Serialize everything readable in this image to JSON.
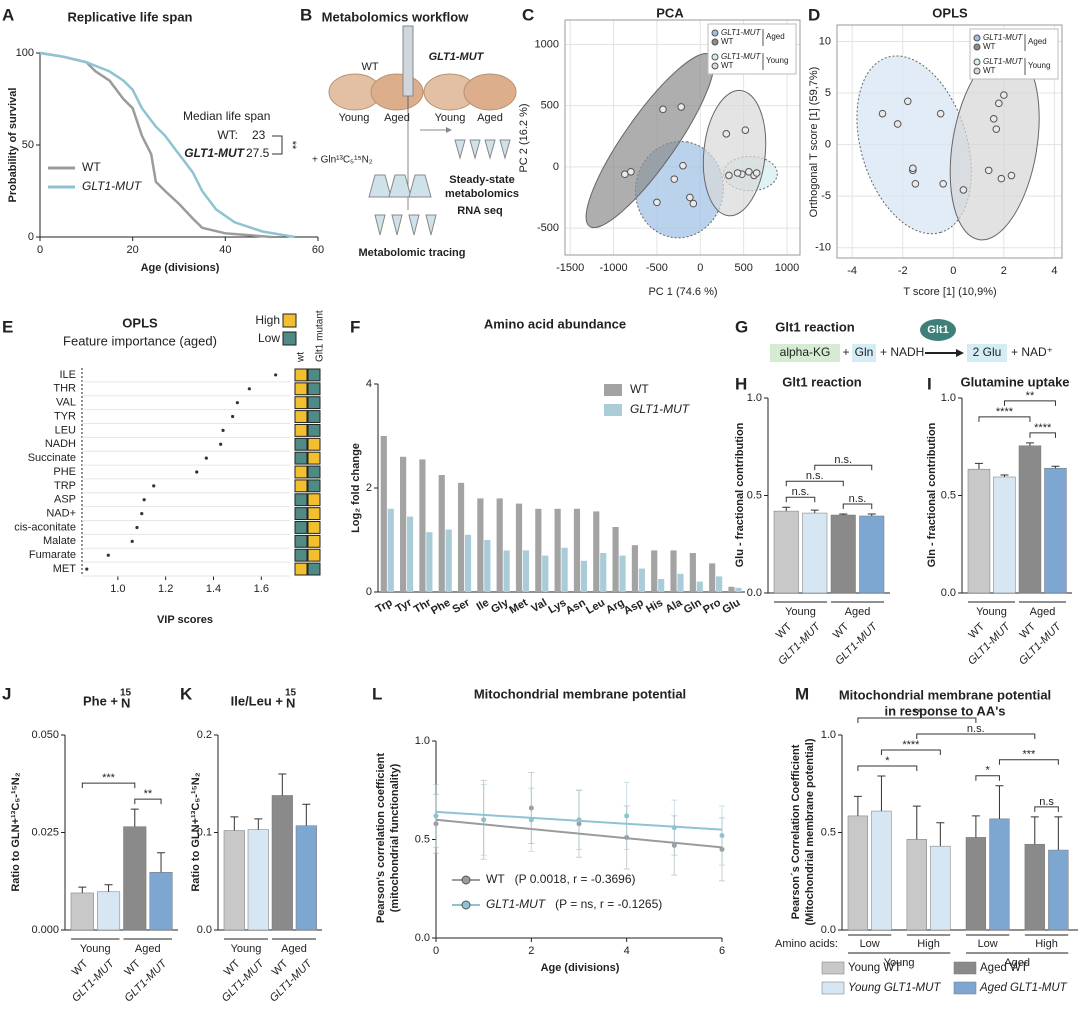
{
  "chart_data": [
    {
      "letter": "A",
      "type": "line",
      "title": "Replicative life span",
      "x_label": "Age (divisions)",
      "y_label": "Probability of survival",
      "xlim": [
        0,
        60
      ],
      "xticks": [
        0,
        20,
        40,
        60
      ],
      "ylim": [
        0,
        100
      ],
      "yticks": [
        0,
        50,
        100
      ],
      "series": [
        {
          "name": "WT",
          "color": "#9b9b9b",
          "x": [
            0,
            5,
            10,
            12,
            15,
            18,
            20,
            22,
            24,
            25,
            27,
            30,
            33,
            35,
            40,
            45,
            50
          ],
          "values": [
            100,
            98,
            95,
            90,
            85,
            75,
            70,
            55,
            45,
            30,
            25,
            18,
            10,
            5,
            2,
            1,
            0
          ]
        },
        {
          "name": "GLT1-MUT",
          "color": "#8fc3d2",
          "x": [
            0,
            5,
            10,
            12,
            15,
            18,
            20,
            22,
            25,
            27,
            30,
            33,
            35,
            38,
            42,
            48,
            55
          ],
          "values": [
            100,
            98,
            95,
            93,
            90,
            85,
            80,
            70,
            60,
            55,
            45,
            35,
            25,
            15,
            8,
            3,
            0
          ]
        }
      ],
      "median_title": "Median life span",
      "median_wt_label": "WT:",
      "median_wt": 23,
      "median_mut_label": "GLT1-MUT",
      "median_mut": 27.5,
      "significance": "**"
    },
    {
      "letter": "B",
      "type": "diagram",
      "title": "Metabolomics workflow",
      "strain_wt": "WT",
      "strain_mut": "GLT1-MUT",
      "ages": [
        "Young",
        "Aged",
        "Young",
        "Aged"
      ],
      "tracer": "+ Gln¹³C₅¹⁵N₂",
      "steady_state": [
        "Steady-state",
        "metabolomics"
      ],
      "rna": "RNA seq",
      "tracing": "Metabolomic tracing"
    },
    {
      "letter": "C",
      "type": "scatter",
      "title": "PCA",
      "x_label": "PC 1  (74.6 %)",
      "y_label": "PC 2 (16.2 %)",
      "xlim": [
        -1560,
        1150
      ],
      "xticks": [
        -1500,
        -1000,
        -500,
        0,
        500,
        1000
      ],
      "ylim": [
        -720,
        1200
      ],
      "yticks": [
        -500,
        0,
        500,
        1000
      ],
      "grid": true,
      "legend": [
        {
          "group": "Aged",
          "names": [
            "GLT1-MUT",
            "WT"
          ]
        },
        {
          "group": "Young",
          "names": [
            "GLT1-MUT",
            "WT"
          ]
        }
      ],
      "series": [
        {
          "color": "#9cbfe3",
          "x": [
            -500,
            -300,
            -200,
            -120,
            -80
          ],
          "values": [
            -290,
            -100,
            10,
            -250,
            -300
          ]
        },
        {
          "color": "#8c8c8c",
          "x": [
            -870,
            -800,
            -430,
            -220
          ],
          "values": [
            -60,
            -40,
            470,
            490
          ]
        },
        {
          "color": "#d3ecef",
          "x": [
            480,
            560,
            620,
            650
          ],
          "values": [
            -60,
            -40,
            -70,
            -50
          ]
        },
        {
          "color": "#d9d9d9",
          "x": [
            300,
            520,
            330,
            430
          ],
          "values": [
            270,
            300,
            -70,
            -50
          ]
        }
      ]
    },
    {
      "letter": "D",
      "type": "scatter",
      "title": "OPLS",
      "x_label": "T score [1] (10,9%)",
      "y_label": "Orthogonal T score [1] (59,7%)",
      "xlim": [
        -4.6,
        4.3
      ],
      "xticks": [
        -4,
        -2,
        0,
        2,
        4
      ],
      "ylim": [
        -11,
        11.6
      ],
      "yticks": [
        -10,
        -5,
        0,
        5,
        10
      ],
      "grid": true,
      "legend": [
        {
          "group": "Aged",
          "names": [
            "GLT1-MUT",
            "WT"
          ]
        },
        {
          "group": "Young",
          "names": [
            "GLT1-MUT",
            "WT"
          ]
        }
      ],
      "series": [
        {
          "color": "#d6e4f3",
          "x": [
            -2.8,
            -2.2,
            -1.8,
            -1.6,
            -1.5,
            -0.5,
            -0.4,
            -1.6
          ],
          "values": [
            3,
            2,
            4.2,
            -2.5,
            -3.8,
            3,
            -3.8,
            -2.3
          ]
        },
        {
          "color": "#d6d6d6",
          "x": [
            0.4,
            1.4,
            1.6,
            1.7,
            1.8,
            1.9,
            2.0,
            2.3
          ],
          "values": [
            -4.4,
            -2.5,
            2.5,
            1.5,
            4,
            -3.3,
            4.8,
            -3
          ]
        }
      ]
    },
    {
      "letter": "E",
      "type": "dot",
      "title": "OPLS",
      "subtitle": "Feature importance (aged)",
      "x_label": "VIP scores",
      "categories": [
        "ILE",
        "THR",
        "VAL",
        "TYR",
        "LEU",
        "NADH",
        "Succinate",
        "PHE",
        "TRP",
        "ASP",
        "NAD+",
        "cis-aconitate",
        "Malate",
        "Fumarate",
        "MET"
      ],
      "values": [
        1.66,
        1.55,
        1.5,
        1.48,
        1.44,
        1.43,
        1.37,
        1.33,
        1.15,
        1.11,
        1.1,
        1.08,
        1.06,
        0.96,
        0.87
      ],
      "xlim": [
        0.85,
        1.72
      ],
      "xticks": [
        {
          "value": 1,
          "label": "1.0"
        },
        1.2,
        1.4,
        1.6
      ],
      "legend": [
        {
          "name": "High",
          "color": "#f2c02e"
        },
        {
          "name": "Low",
          "color": "#4f8a84"
        }
      ],
      "heat_columns": [
        "wt",
        "Glt1 mutant"
      ],
      "heat_colors": [
        [
          "#f2c02e",
          "#4f8a84"
        ],
        [
          "#f2c02e",
          "#4f8a84"
        ],
        [
          "#f2c02e",
          "#4f8a84"
        ],
        [
          "#f2c02e",
          "#4f8a84"
        ],
        [
          "#f2c02e",
          "#4f8a84"
        ],
        [
          "#4f8a84",
          "#f2c02e"
        ],
        [
          "#4f8a84",
          "#f2c02e"
        ],
        [
          "#f2c02e",
          "#4f8a84"
        ],
        [
          "#f2c02e",
          "#4f8a84"
        ],
        [
          "#4f8a84",
          "#f2c02e"
        ],
        [
          "#4f8a84",
          "#f2c02e"
        ],
        [
          "#4f8a84",
          "#f2c02e"
        ],
        [
          "#4f8a84",
          "#f2c02e"
        ],
        [
          "#4f8a84",
          "#f2c02e"
        ],
        [
          "#f2c02e",
          "#4f8a84"
        ]
      ]
    },
    {
      "letter": "F",
      "type": "bar",
      "title": "Amino acid abundance",
      "y_label": "Log₂ fold change",
      "categories": [
        "Trp",
        "Tyr",
        "Thr",
        "Phe",
        "Ser",
        "Ile",
        "Gly",
        "Met",
        "Val",
        "Lys",
        "Asn",
        "Leu",
        "Arg",
        "Asp",
        "His",
        "Ala",
        "Gln",
        "Pro",
        "Glu"
      ],
      "series": [
        {
          "name": "WT",
          "color": "#a3a3a3",
          "values": [
            3.0,
            2.6,
            2.55,
            2.25,
            2.1,
            1.8,
            1.8,
            1.7,
            1.6,
            1.6,
            1.6,
            1.55,
            1.25,
            0.9,
            0.8,
            0.8,
            0.75,
            0.55,
            0.1
          ]
        },
        {
          "name": "GLT1-MUT",
          "color": "#a9ccd8",
          "values": [
            1.6,
            1.45,
            1.15,
            1.2,
            1.1,
            1.0,
            0.8,
            0.8,
            0.7,
            0.85,
            0.6,
            0.75,
            0.7,
            0.45,
            0.25,
            0.35,
            0.2,
            0.3,
            0.08
          ]
        }
      ],
      "ylim": [
        0,
        4
      ],
      "yticks": [
        0,
        2,
        4
      ]
    },
    {
      "letter": "G",
      "type": "diagram",
      "title": "Glt1 reaction",
      "enzyme": "Glt1",
      "substrate_1": "alpha-KG",
      "plus": "+",
      "substrate_2": "Gln",
      "cofactor": "+ NADH",
      "product": "2 Glu",
      "product_cofactor": "+ NAD⁺"
    },
    {
      "letter": "H",
      "type": "bar_err",
      "title": "Glt1 reaction",
      "y_label": "Glu - fractional contribution",
      "categories": [
        "WT",
        "GLT1-MUT",
        "WT",
        "GLT1-MUT"
      ],
      "groups": [
        "Young",
        "Aged"
      ],
      "values": [
        0.42,
        0.41,
        0.4,
        0.395
      ],
      "errors": [
        0.02,
        0.015,
        0.005,
        0.01
      ],
      "colors": [
        "#c8c8c8",
        "#d6e6f2",
        "#8a8a8a",
        "#7da6d1"
      ],
      "ylim": [
        0,
        1
      ],
      "yticks": [
        {
          "value": 0,
          "label": "0.0"
        },
        0.5,
        {
          "value": 1,
          "label": "1.0"
        }
      ],
      "significance": [
        {
          "label": "n.s.",
          "pair": [
            0,
            1
          ]
        },
        {
          "label": "n.s.",
          "pair": [
            2,
            3
          ]
        },
        {
          "label": "n.s.",
          "pair": [
            0,
            2
          ]
        },
        {
          "label": "n.s.",
          "pair": [
            1,
            3
          ]
        }
      ]
    },
    {
      "letter": "I",
      "type": "bar_err",
      "title": "Glutamine uptake",
      "y_label": "Gln - fractional contribution",
      "categories": [
        "WT",
        "GLT1-MUT",
        "WT",
        "GLT1-MUT"
      ],
      "groups": [
        "Young",
        "Aged"
      ],
      "values": [
        0.635,
        0.595,
        0.755,
        0.64
      ],
      "errors": [
        0.03,
        0.01,
        0.015,
        0.01
      ],
      "colors": [
        "#c8c8c8",
        "#d6e6f2",
        "#8a8a8a",
        "#7da6d1"
      ],
      "ylim": [
        0,
        1
      ],
      "yticks": [
        {
          "value": 0,
          "label": "0.0"
        },
        0.5,
        {
          "value": 1,
          "label": "1.0"
        }
      ],
      "significance": [
        {
          "label": "****",
          "pair": [
            2,
            3
          ]
        },
        {
          "label": "****",
          "pair": [
            0,
            2
          ]
        },
        {
          "label": "**",
          "pair": [
            1,
            3
          ]
        }
      ]
    },
    {
      "letter": "J",
      "type": "bar_err",
      "title": "Phe +",
      "title_sup": "15",
      "title_end": "N",
      "y_label": "Ratio to GLN+¹³C₅-¹⁵N₂",
      "categories": [
        "WT",
        "GLT1-MUT",
        "WT",
        "GLT1-MUT"
      ],
      "groups": [
        "Young",
        "Aged"
      ],
      "values": [
        0.0095,
        0.0098,
        0.0265,
        0.0148
      ],
      "errors": [
        0.0015,
        0.0018,
        0.0045,
        0.005
      ],
      "colors": [
        "#c8c8c8",
        "#d6e6f2",
        "#8a8a8a",
        "#7da6d1"
      ],
      "ylim": [
        0,
        0.05
      ],
      "yticks": [
        {
          "value": 0,
          "label": "0.000"
        },
        0.025,
        {
          "value": 0.05,
          "label": "0.050"
        }
      ],
      "significance": [
        {
          "label": "**",
          "pair": [
            2,
            3
          ]
        },
        {
          "label": "***",
          "pair": [
            0,
            2
          ]
        }
      ]
    },
    {
      "letter": "K",
      "type": "bar_err",
      "title": "Ile/Leu +",
      "title_sup": "15",
      "title_end": "N",
      "y_label": "Ratio to GLN+¹³C₅-¹⁵N₂",
      "categories": [
        "WT",
        "GLT1-MUT",
        "WT",
        "GLT1-MUT"
      ],
      "groups": [
        "Young",
        "Aged"
      ],
      "values": [
        0.102,
        0.103,
        0.138,
        0.107
      ],
      "errors": [
        0.014,
        0.011,
        0.022,
        0.022
      ],
      "colors": [
        "#c8c8c8",
        "#d6e6f2",
        "#8a8a8a",
        "#7da6d1"
      ],
      "ylim": [
        0,
        0.2
      ],
      "yticks": [
        {
          "value": 0,
          "label": "0.0"
        },
        0.1,
        0.2
      ]
    },
    {
      "letter": "L",
      "type": "line_err",
      "title": "Mitochondrial membrane potential",
      "x_label": "Age (divisions)",
      "y_label": "Pearson's correlation coefficient",
      "y_label_2": "(mitochondrial functionality)",
      "xlim": [
        0,
        6
      ],
      "xticks": [
        0,
        2,
        4,
        6
      ],
      "ylim": [
        0,
        1
      ],
      "yticks": [
        {
          "value": 0,
          "label": "0.0"
        },
        0.5,
        {
          "value": 1,
          "label": "1.0"
        }
      ],
      "series": [
        {
          "name": "WT",
          "stat": "(P 0.0018, r = -0.3696)",
          "color": "#9b9b9b",
          "x": [
            0,
            1,
            2,
            3,
            4,
            5,
            6
          ],
          "values": [
            0.58,
            0.6,
            0.66,
            0.58,
            0.51,
            0.47,
            0.45
          ],
          "errors": [
            0.15,
            0.2,
            0.18,
            0.17,
            0.16,
            0.15,
            0.16
          ],
          "fit": [
            0.6,
            0.46
          ]
        },
        {
          "name": "GLT1-MUT",
          "stat": "(P = ns, r = -0.1265)",
          "color": "#8fc3d2",
          "x": [
            0,
            1,
            2,
            3,
            4,
            5,
            6
          ],
          "values": [
            0.62,
            0.6,
            0.6,
            0.6,
            0.62,
            0.56,
            0.52
          ],
          "errors": [
            0.16,
            0.18,
            0.16,
            0.15,
            0.17,
            0.14,
            0.15
          ],
          "fit": [
            0.64,
            0.55
          ]
        }
      ]
    },
    {
      "letter": "M",
      "type": "bar_grouped_err",
      "title": "Mitochondrial membrane potential",
      "subtitle": "in response to AA's",
      "y_label": "Pearson´s Correlation Coefficient",
      "y_label_2": "(Mitochondrial membrane potential)",
      "levels_label": "Amino acids:",
      "levels": [
        "Low",
        "High"
      ],
      "groups": [
        "Young",
        "Aged"
      ],
      "series": [
        {
          "name": "Young WT",
          "color": "#c8c8c8",
          "group": 0,
          "values": [
            0.585,
            0.465
          ],
          "errors": [
            0.1,
            0.17
          ]
        },
        {
          "name": "Young GLT1-MUT",
          "color": "#d6e6f2",
          "group": 0,
          "values": [
            0.61,
            0.43
          ],
          "errors": [
            0.18,
            0.12
          ]
        },
        {
          "name": "Aged WT",
          "color": "#8a8a8a",
          "group": 1,
          "values": [
            0.475,
            0.44
          ],
          "errors": [
            0.11,
            0.14
          ]
        },
        {
          "name": "Aged GLT1-MUT",
          "color": "#7da6d1",
          "group": 1,
          "values": [
            0.57,
            0.41
          ],
          "errors": [
            0.17,
            0.17
          ]
        }
      ],
      "ylim": [
        0,
        1
      ],
      "yticks": [
        {
          "value": 0,
          "label": "0.0"
        },
        0.5,
        {
          "value": 1,
          "label": "1.0"
        }
      ],
      "significance": [
        {
          "label": "n.s",
          "pair": [
            6,
            7
          ]
        },
        {
          "label": "*",
          "pair": [
            4,
            5
          ]
        },
        {
          "label": "***",
          "pair": [
            5,
            7
          ]
        },
        {
          "label": "*",
          "pair": [
            0,
            2
          ]
        },
        {
          "label": "****",
          "pair": [
            1,
            3
          ]
        },
        {
          "label": "n.s.",
          "pair": [
            2,
            6
          ]
        },
        {
          "label": "**",
          "pair": [
            0,
            4
          ]
        }
      ]
    }
  ]
}
